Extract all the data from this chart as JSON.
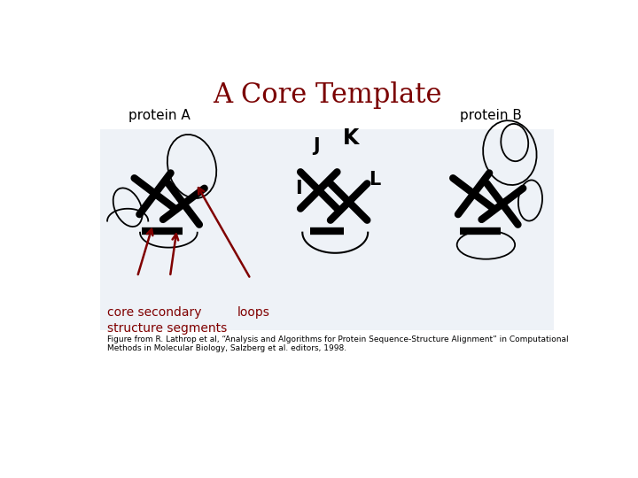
{
  "title": "A Core Template",
  "title_color": "#7a0000",
  "title_fontsize": 22,
  "title_font": "serif",
  "protein_a_label": "protein A",
  "protein_b_label": "protein B",
  "label_fontsize": 11,
  "label_font": "sans-serif",
  "core_secondary_label": "core secondary\nstructure segments",
  "loops_label": "loops",
  "annotation_color": "#800000",
  "annotation_fontsize": 10,
  "annotation_font": "sans-serif",
  "figure_caption": "Figure from R. Lathrop et al, “Analysis and Algorithms for Protein Sequence-Structure Alignment” in Computational\nMethods in Molecular Biology, Salzberg et al. editors, 1998.",
  "caption_fontsize": 6.5,
  "caption_font": "sans-serif",
  "bg_color": "#eef2f7",
  "segment_lw": 6,
  "loop_lw": 1.3
}
